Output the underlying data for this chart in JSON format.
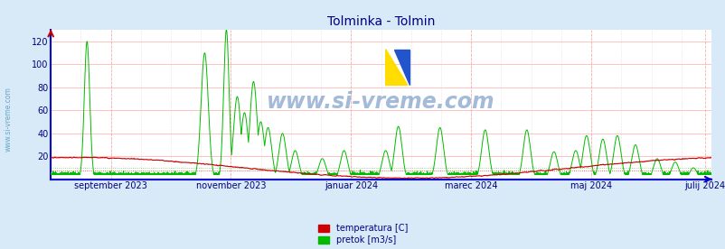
{
  "title": "Tolminka - Tolmin",
  "title_color": "#000080",
  "bg_color": "#d8eaf8",
  "plot_bg_color": "#ffffff",
  "grid_color_h": "#ffaaaa",
  "grid_color_v": "#ffbbbb",
  "grid_color_vdot": "#dddddd",
  "xlabel_color": "#000080",
  "ylabel_color": "#000080",
  "watermark_text": "www.si-vreme.com",
  "x_tick_labels": [
    "september 2023",
    "november 2023",
    "januar 2024",
    "marec 2024",
    "maj 2024",
    "julij 2024"
  ],
  "ylim_max": 130,
  "y_ticks": [
    20,
    40,
    60,
    80,
    100,
    120
  ],
  "legend_labels": [
    "temperatura [C]",
    "pretok [m3/s]"
  ],
  "legend_colors": [
    "#cc0000",
    "#00bb00"
  ],
  "temp_color": "#cc0000",
  "flow_color": "#00bb00",
  "left_label": "www.si-vreme.com",
  "left_label_color": "#5599bb",
  "spine_color": "#0000cc",
  "ref_line_temp": 8,
  "ref_line_flow": 10
}
